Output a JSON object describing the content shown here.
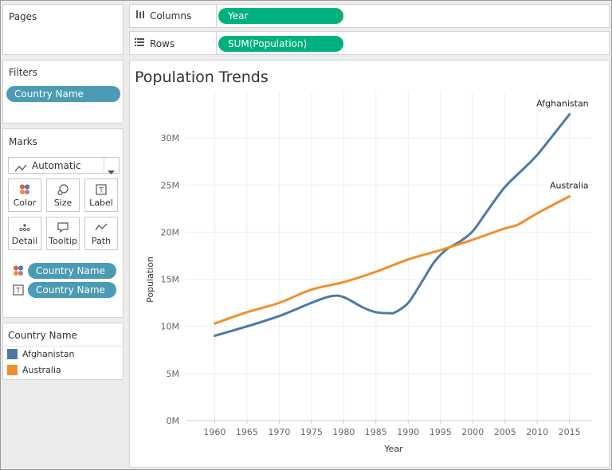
{
  "pages_panel": {
    "title": "Pages"
  },
  "columns_shelf": {
    "label": "Columns",
    "icon": "columns-icon",
    "pill": "Year"
  },
  "rows_shelf": {
    "label": "Rows",
    "icon": "rows-icon",
    "pill": "SUM(Population)"
  },
  "filters_panel": {
    "title": "Filters",
    "pills": [
      "Country Name"
    ]
  },
  "marks_panel": {
    "title": "Marks",
    "mark_type": "Automatic",
    "cards": [
      {
        "label": "Color",
        "icon": "color-icon"
      },
      {
        "label": "Size",
        "icon": "size-icon"
      },
      {
        "label": "Label",
        "icon": "label-icon"
      },
      {
        "label": "Detail",
        "icon": "detail-icon"
      },
      {
        "label": "Tooltip",
        "icon": "tooltip-icon"
      },
      {
        "label": "Path",
        "icon": "path-icon"
      }
    ],
    "encodings": [
      {
        "icon": "color-icon",
        "field": "Country Name"
      },
      {
        "icon": "label-icon",
        "field": "Country Name"
      }
    ]
  },
  "legend": {
    "title": "Country Name",
    "items": [
      {
        "label": "Afghanistan",
        "color": "#4e79a7"
      },
      {
        "label": "Australia",
        "color": "#f28e2b"
      }
    ]
  },
  "chart_data": {
    "type": "line",
    "title": "Population Trends",
    "xlabel": "Year",
    "ylabel": "Population",
    "xlim": [
      1955.5,
      2018.5
    ],
    "ylim": [
      0,
      35000000
    ],
    "x_ticks": [
      1960,
      1965,
      1970,
      1975,
      1980,
      1985,
      1990,
      1995,
      2000,
      2005,
      2010,
      2015
    ],
    "y_ticks": [
      {
        "value": 0,
        "label": "0M"
      },
      {
        "value": 5000000,
        "label": "5M"
      },
      {
        "value": 10000000,
        "label": "10M"
      },
      {
        "value": 15000000,
        "label": "15M"
      },
      {
        "value": 20000000,
        "label": "20M"
      },
      {
        "value": 25000000,
        "label": "25M"
      },
      {
        "value": 30000000,
        "label": "30M"
      }
    ],
    "grid": true,
    "series": [
      {
        "name": "Afghanistan",
        "color": "#4e79a7",
        "end_label": "Afghanistan",
        "x": [
          1960,
          1965,
          1970,
          1975,
          1978,
          1980,
          1983,
          1985,
          1987,
          1988,
          1990,
          1992,
          1994,
          1996,
          1998,
          2000,
          2002,
          2005,
          2008,
          2010,
          2012,
          2015
        ],
        "y": [
          9000000,
          10000000,
          11100000,
          12500000,
          13200000,
          13100000,
          12000000,
          11500000,
          11400000,
          11500000,
          12500000,
          14600000,
          16800000,
          18200000,
          19000000,
          20100000,
          22000000,
          24800000,
          26800000,
          28200000,
          29900000,
          32500000
        ]
      },
      {
        "name": "Australia",
        "color": "#f28e2b",
        "end_label": "Australia",
        "x": [
          1960,
          1965,
          1970,
          1975,
          1980,
          1985,
          1990,
          1995,
          2000,
          2005,
          2007,
          2010,
          2015
        ],
        "y": [
          10300000,
          11500000,
          12500000,
          13900000,
          14700000,
          15800000,
          17100000,
          18100000,
          19200000,
          20400000,
          20800000,
          22000000,
          23800000
        ]
      }
    ]
  }
}
